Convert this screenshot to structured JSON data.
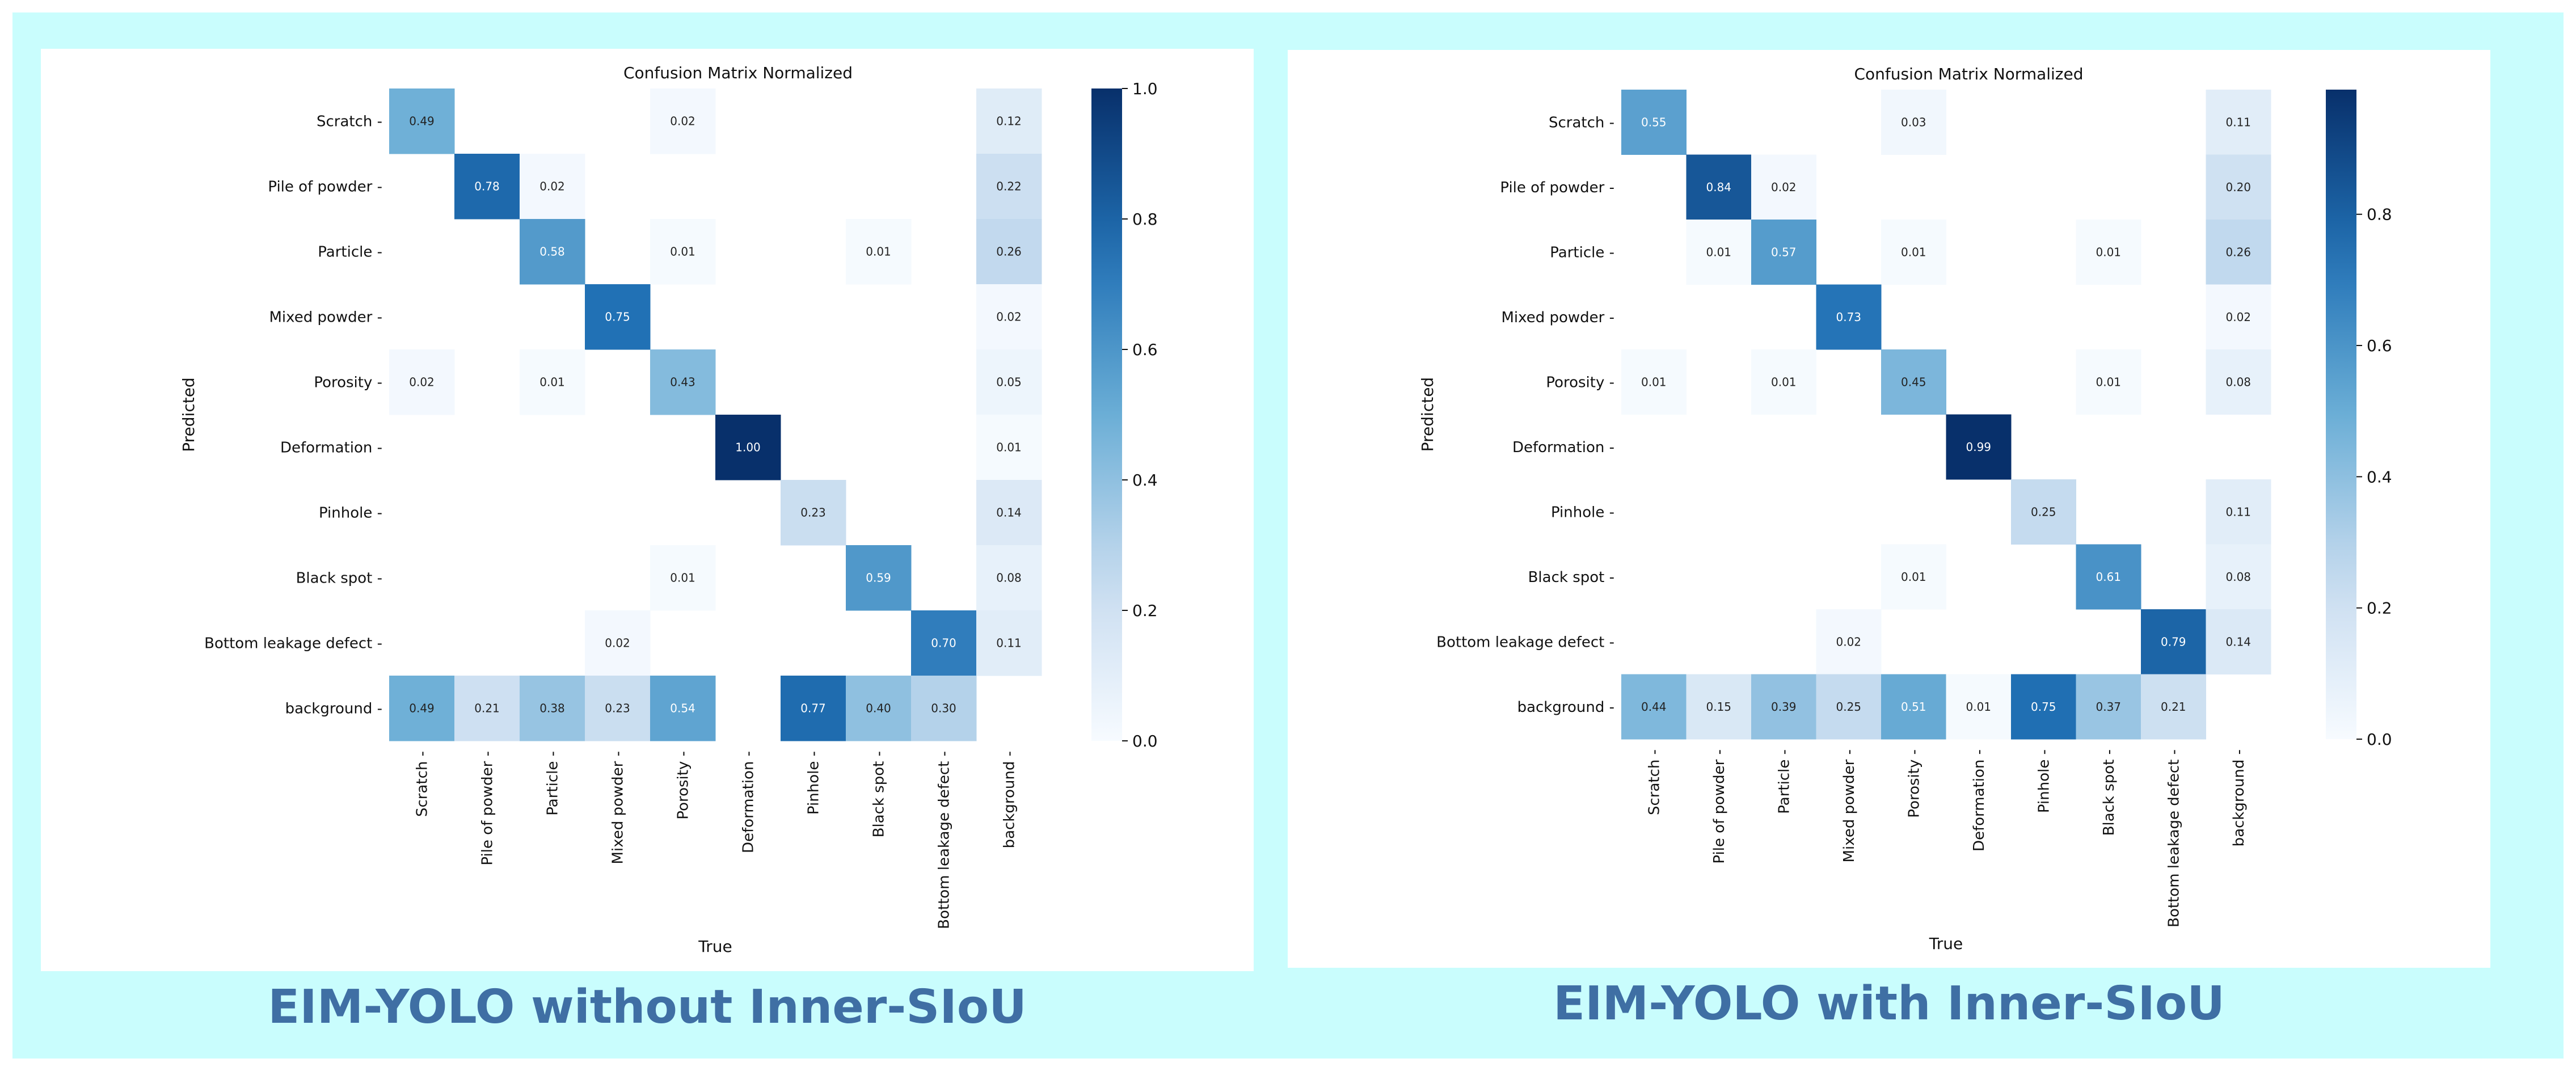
{
  "colors": {
    "frame_background": "#c9fdfd",
    "caption_color": "#3f6fa4",
    "colormap": [
      "#f7fbff",
      "#c6dbef",
      "#6baed6",
      "#2171b5",
      "#08306b"
    ]
  },
  "figures": [
    {
      "caption": "EIM-YOLO without Inner-SIoU",
      "title": "Confusion Matrix Normalized"
    },
    {
      "caption": "EIM-YOLO with Inner-SIoU",
      "title": "Confusion Matrix Normalized"
    }
  ],
  "chart_data": [
    {
      "type": "heatmap",
      "title": "Confusion Matrix Normalized",
      "xlabel": "True",
      "ylabel": "Predicted",
      "labels": [
        "Scratch",
        "Pile of powder",
        "Particle",
        "Mixed powder",
        "Porosity",
        "Deformation",
        "Pinhole",
        "Black spot",
        "Bottom leakage defect",
        "background"
      ],
      "matrix": [
        [
          0.49,
          null,
          null,
          null,
          0.02,
          null,
          null,
          null,
          null,
          0.12
        ],
        [
          null,
          0.78,
          0.02,
          null,
          null,
          null,
          null,
          null,
          null,
          0.22
        ],
        [
          null,
          null,
          0.58,
          null,
          0.01,
          null,
          null,
          0.01,
          null,
          0.26
        ],
        [
          null,
          null,
          null,
          0.75,
          null,
          null,
          null,
          null,
          null,
          0.02
        ],
        [
          0.02,
          null,
          0.01,
          null,
          0.43,
          null,
          null,
          null,
          null,
          0.05
        ],
        [
          null,
          null,
          null,
          null,
          null,
          1.0,
          null,
          null,
          null,
          0.01
        ],
        [
          null,
          null,
          null,
          null,
          null,
          null,
          0.23,
          null,
          null,
          0.14
        ],
        [
          null,
          null,
          null,
          null,
          0.01,
          null,
          null,
          0.59,
          null,
          0.08
        ],
        [
          null,
          null,
          null,
          0.02,
          null,
          null,
          null,
          null,
          0.7,
          0.11
        ],
        [
          0.49,
          0.21,
          0.38,
          0.23,
          0.54,
          null,
          0.77,
          0.4,
          0.3,
          null
        ]
      ],
      "colorbar": {
        "range": [
          0,
          1.0
        ],
        "ticks": [
          "0.0",
          "0.2",
          "0.4",
          "0.6",
          "0.8",
          "1.0"
        ]
      }
    },
    {
      "type": "heatmap",
      "title": "Confusion Matrix Normalized",
      "xlabel": "True",
      "ylabel": "Predicted",
      "labels": [
        "Scratch",
        "Pile of powder",
        "Particle",
        "Mixed powder",
        "Porosity",
        "Deformation",
        "Pinhole",
        "Black spot",
        "Bottom leakage defect",
        "background"
      ],
      "matrix": [
        [
          0.55,
          null,
          null,
          null,
          0.03,
          null,
          null,
          null,
          null,
          0.11
        ],
        [
          null,
          0.84,
          0.02,
          null,
          null,
          null,
          null,
          null,
          null,
          0.2
        ],
        [
          null,
          0.01,
          0.57,
          null,
          0.01,
          null,
          null,
          0.01,
          null,
          0.26
        ],
        [
          null,
          null,
          null,
          0.73,
          null,
          null,
          null,
          null,
          null,
          0.02
        ],
        [
          0.01,
          null,
          0.01,
          null,
          0.45,
          null,
          null,
          0.01,
          null,
          0.08
        ],
        [
          null,
          null,
          null,
          null,
          null,
          0.99,
          null,
          null,
          null,
          null
        ],
        [
          null,
          null,
          null,
          null,
          null,
          null,
          0.25,
          null,
          null,
          0.11
        ],
        [
          null,
          null,
          null,
          null,
          0.01,
          null,
          null,
          0.61,
          null,
          0.08
        ],
        [
          null,
          null,
          null,
          0.02,
          null,
          null,
          null,
          null,
          0.79,
          0.14
        ],
        [
          0.44,
          0.15,
          0.39,
          0.25,
          0.51,
          0.01,
          0.75,
          0.37,
          0.21,
          null
        ]
      ],
      "colorbar": {
        "range": [
          0,
          0.99
        ],
        "ticks": [
          "0.0",
          "0.2",
          "0.4",
          "0.6",
          "0.8"
        ]
      }
    }
  ]
}
